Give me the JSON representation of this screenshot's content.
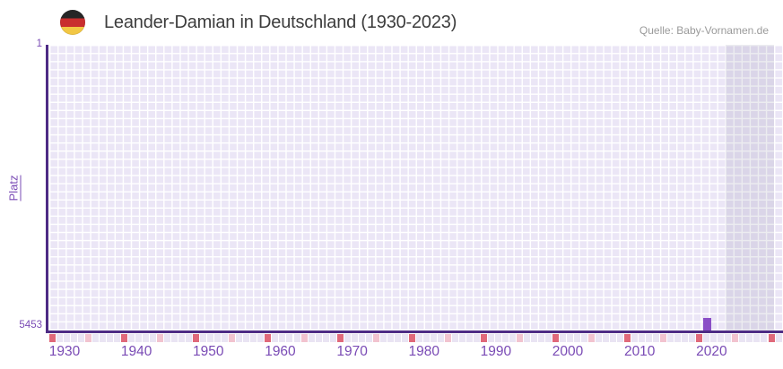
{
  "header": {
    "title": "Leander-Damian in Deutschland (1930-2023)",
    "source": "Quelle: Baby-Vornamen.de",
    "flag_icon": "german-flag-icon"
  },
  "chart_data": {
    "type": "bar",
    "title": "Leander-Damian in Deutschland (1930-2023)",
    "ylabel": "Platz",
    "y_axis": {
      "top_tick": "1",
      "bottom_tick": "5453",
      "inverted": true,
      "note_best_rank_on_top": true
    },
    "x_axis": {
      "tick_labels": [
        "1930",
        "1940",
        "1950",
        "1960",
        "1970",
        "1980",
        "1990",
        "2000",
        "2010",
        "2020"
      ],
      "displayed_year_start": 1930,
      "displayed_year_end": 2023,
      "strip_year_start": 1930,
      "strip_year_count": 102,
      "decade_tick_interval": 10,
      "half_decade_tick_interval": 5
    },
    "points": [
      {
        "year": 2021,
        "platz": 5453
      }
    ],
    "baseline_flat_line": true,
    "shaded_region_years": {
      "start": 2024,
      "end": 2030
    },
    "legend": "none",
    "grid": "checkered",
    "colors": {
      "axis_text": "#7a4bb5",
      "axis_line": "#4e2c85",
      "bar": "#8a4fc6",
      "grid_cell": "#ebe6f6",
      "shaded_cell": "#dedae9",
      "tick_decade": "#e0697a",
      "tick_half_decade": "#f2c3cf",
      "tick_year": "#e9e4f3",
      "title_text": "#3d3d3d",
      "source_text": "#9a9a9a",
      "flag_black": "#262626",
      "flag_red": "#c92e2e",
      "flag_gold": "#f2c744"
    }
  }
}
